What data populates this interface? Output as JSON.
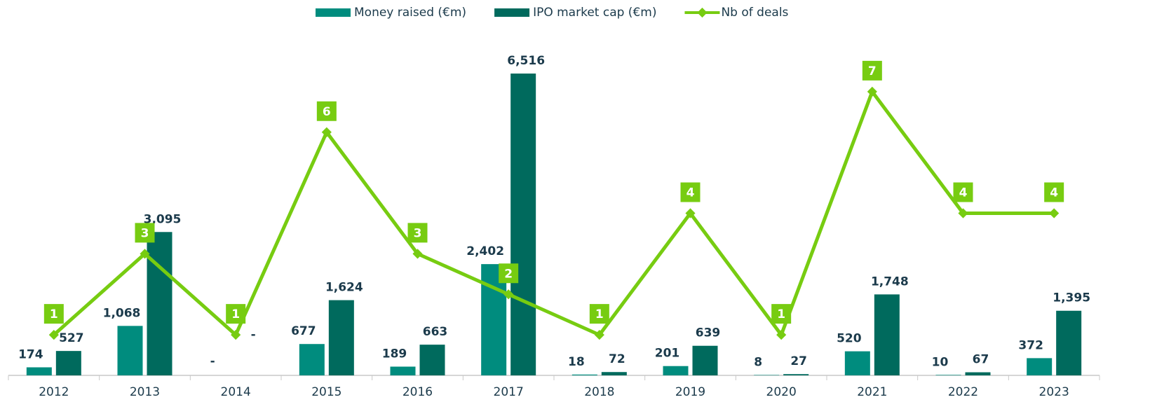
{
  "chart_data": {
    "type": "bar-line",
    "categories": [
      "2012",
      "2013",
      "2014",
      "2015",
      "2016",
      "2017",
      "2018",
      "2019",
      "2020",
      "2021",
      "2022",
      "2023"
    ],
    "series": [
      {
        "name": "Money raised (€m)",
        "color": "#008c7e",
        "type": "bar",
        "values": [
          174,
          1068,
          null,
          677,
          189,
          2402,
          18,
          201,
          8,
          520,
          10,
          372
        ],
        "value_labels": [
          "174",
          "1,068",
          "-",
          "677",
          "189",
          "2,402",
          "18",
          "201",
          "8",
          "520",
          "10",
          "372"
        ]
      },
      {
        "name": "IPO market cap (€m)",
        "color": "#006a5d",
        "type": "bar",
        "values": [
          527,
          3095,
          null,
          1624,
          663,
          6516,
          72,
          639,
          27,
          1748,
          67,
          1395
        ],
        "value_labels": [
          "527",
          "3,095",
          "-",
          "1,624",
          "663",
          "6,516",
          "72",
          "639",
          "27",
          "1,748",
          "67",
          "1,395"
        ]
      },
      {
        "name": "Nb of deals",
        "color": "#77cc11",
        "type": "line",
        "axis": "y2",
        "values": [
          1,
          3,
          1,
          6,
          3,
          2,
          1,
          4,
          1,
          7,
          4,
          4
        ]
      }
    ],
    "ylim": [
      0,
      7000
    ],
    "y2lim": [
      0,
      8
    ],
    "legend": "top"
  }
}
